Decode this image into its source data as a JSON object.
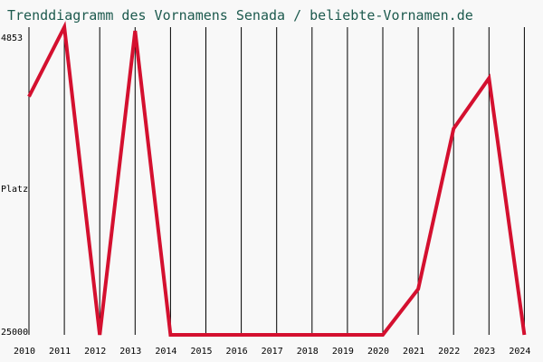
{
  "chart_data": {
    "type": "line",
    "title": "Trenddiagramm des Vornamens Senada / beliebte-Vornamen.de",
    "xlabel": "",
    "ylabel": "Platz",
    "y_axis_inverted": true,
    "y_tick_labels": [
      "4853",
      "25000"
    ],
    "ylim": [
      4853,
      25000
    ],
    "categories": [
      "2010",
      "2011",
      "2012",
      "2013",
      "2014",
      "2015",
      "2016",
      "2017",
      "2018",
      "2019",
      "2020",
      "2021",
      "2022",
      "2023",
      "2024"
    ],
    "series": [
      {
        "values": [
          9400,
          4853,
          25000,
          5100,
          25000,
          25000,
          25000,
          25000,
          25000,
          25000,
          25000,
          22000,
          11500,
          8200,
          25000
        ],
        "color": "#d4102f"
      }
    ],
    "grid": "vertical",
    "gridline_color": "#000000",
    "line_color": "#d4102f",
    "background": "#f8f8f8",
    "title_color": "#1d5a4e"
  }
}
